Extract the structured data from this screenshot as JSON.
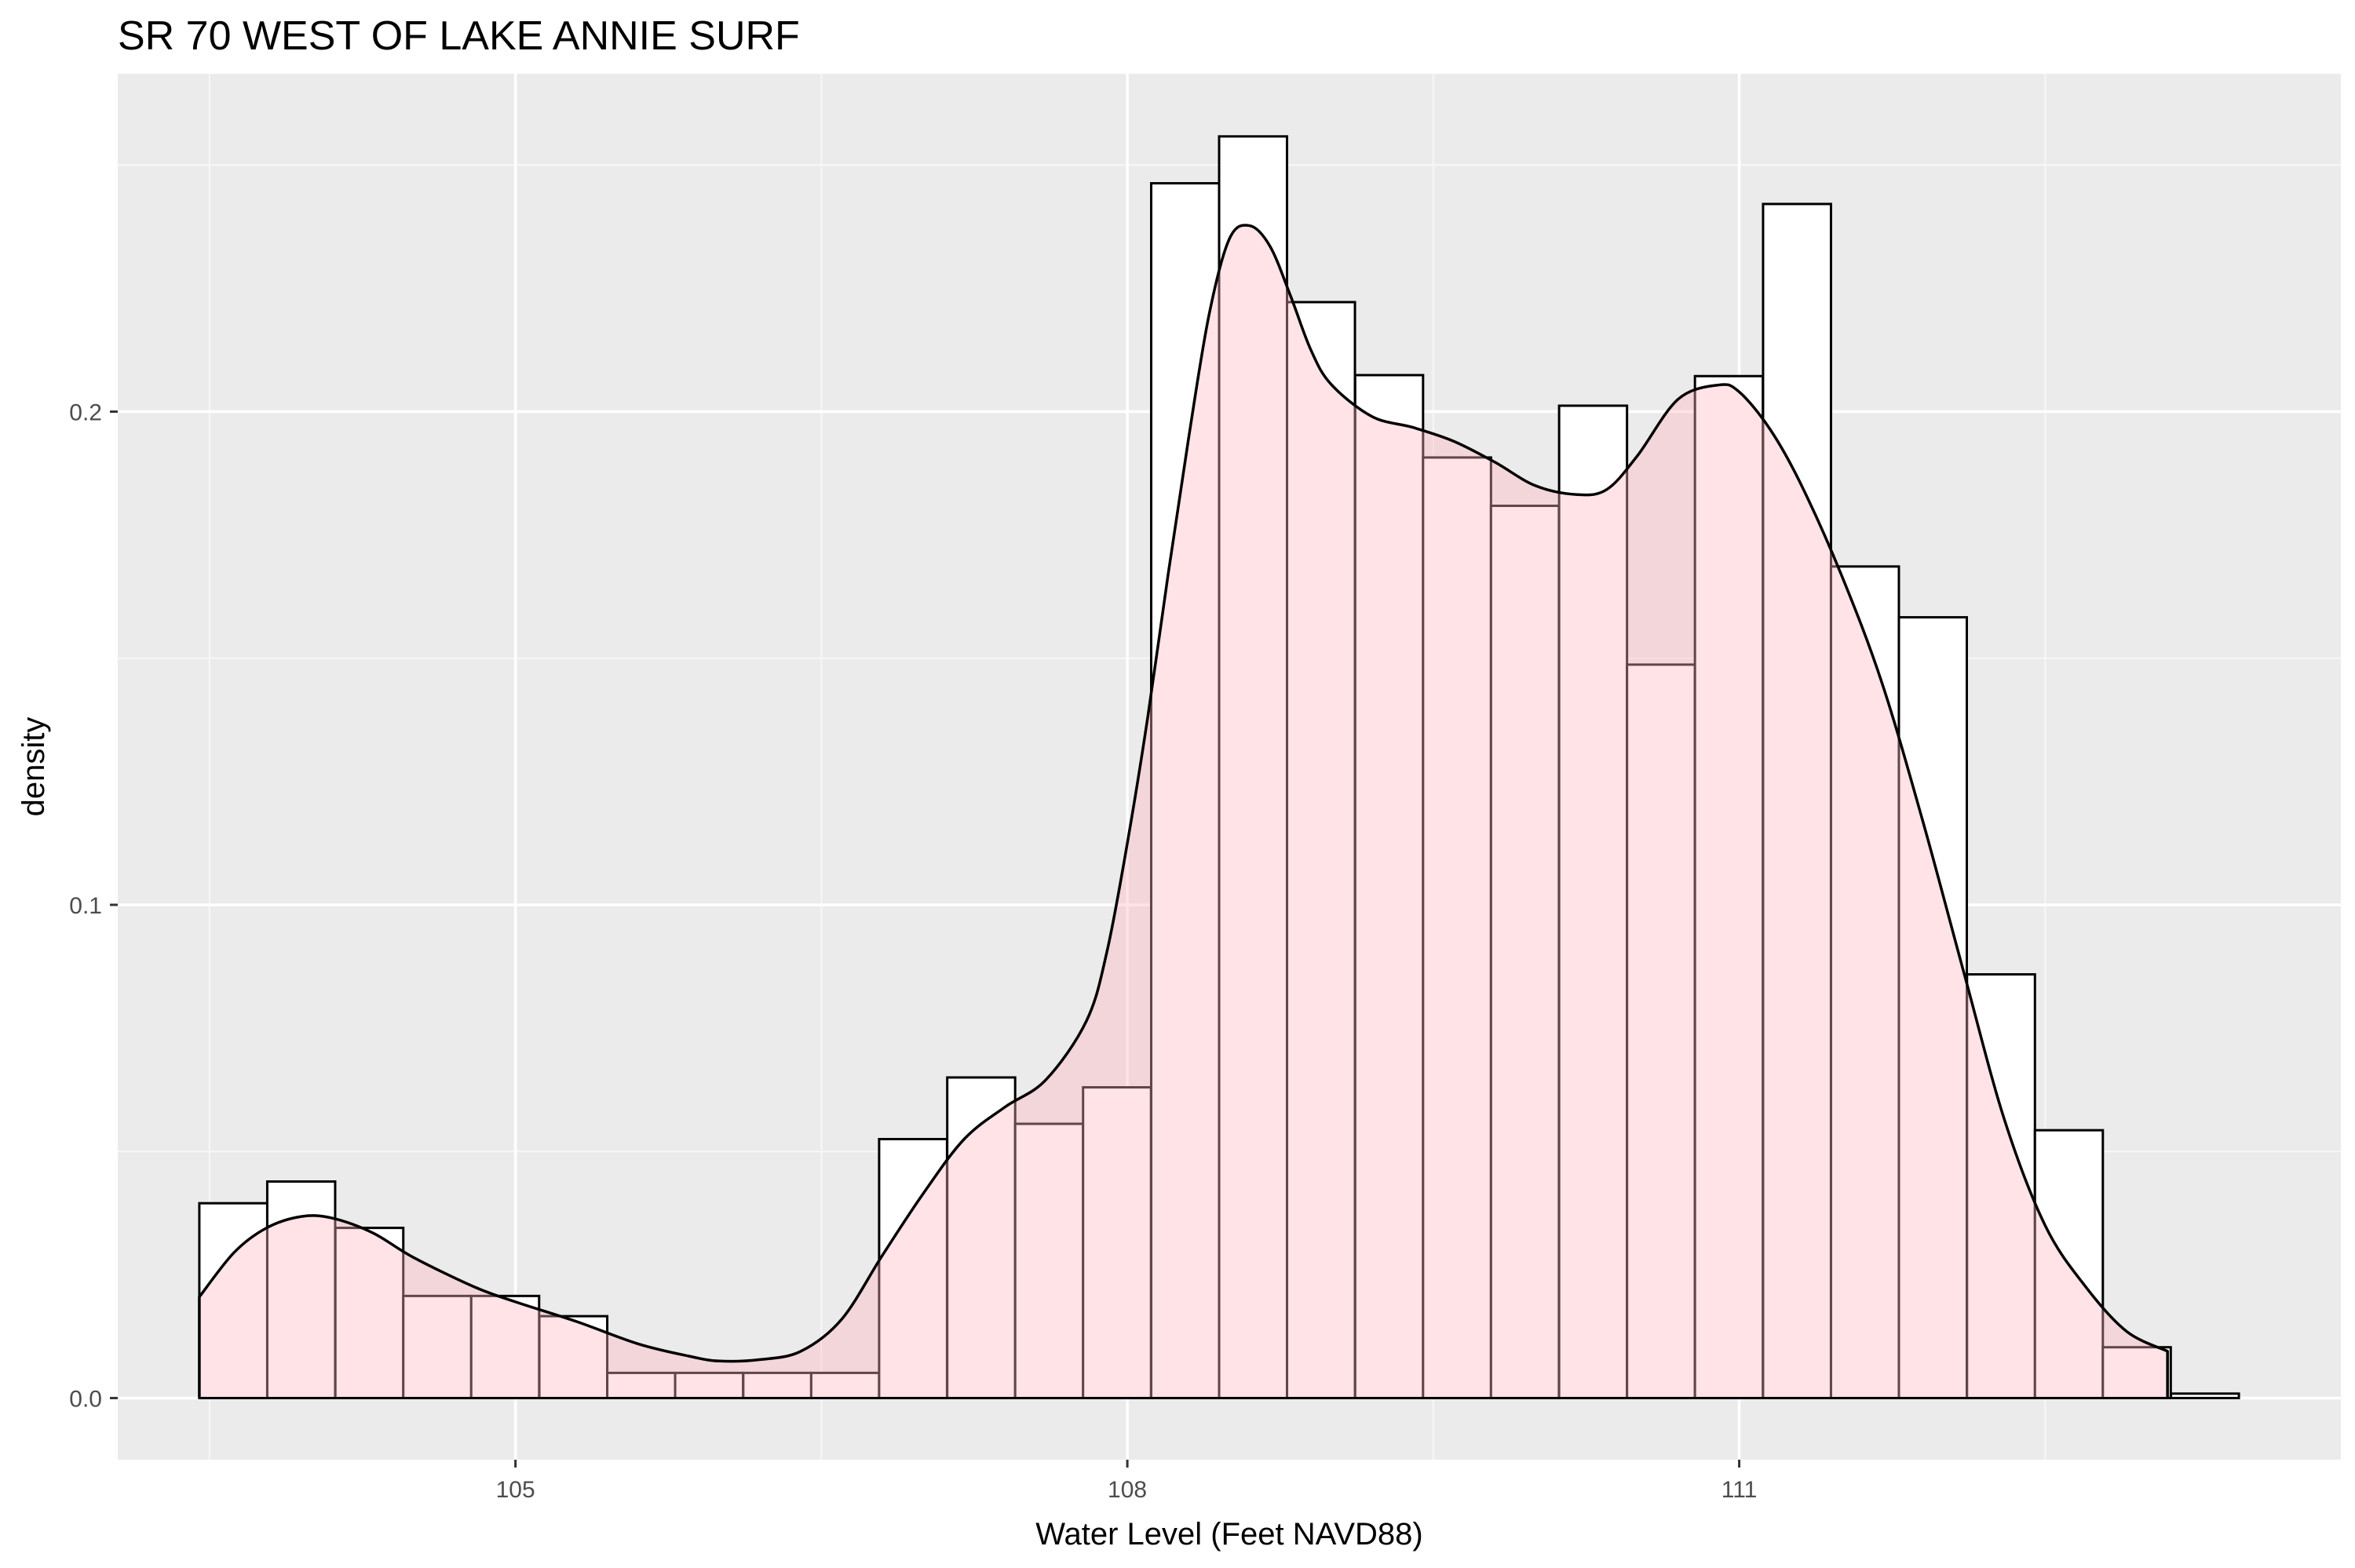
{
  "chart_data": {
    "type": "bar",
    "title": "SR 70 WEST OF LAKE ANNIE SURF",
    "xlabel": "Water Level (Feet NAVD88)",
    "ylabel": "density",
    "xlim": [
      103.05,
      113.95
    ],
    "ylim": [
      -0.0125,
      0.2685
    ],
    "x_ticks": [
      105,
      108,
      111
    ],
    "x_tick_labels": [
      "105",
      "108",
      "111"
    ],
    "x_minor_ticks": [
      103.5,
      106.5,
      109.5,
      112.5
    ],
    "y_ticks": [
      0.0,
      0.1,
      0.2
    ],
    "y_tick_labels": [
      "0.0",
      "0.1",
      "0.2"
    ],
    "y_minor_ticks": [
      0.05,
      0.15,
      0.25
    ],
    "grid": true,
    "bin_width": 0.333,
    "bins": [
      {
        "x0": 103.45,
        "density": 0.0395
      },
      {
        "x0": 103.783,
        "density": 0.0439
      },
      {
        "x0": 104.117,
        "density": 0.0345
      },
      {
        "x0": 104.45,
        "density": 0.0207
      },
      {
        "x0": 104.783,
        "density": 0.0207
      },
      {
        "x0": 105.117,
        "density": 0.0166
      },
      {
        "x0": 105.45,
        "density": 0.0051
      },
      {
        "x0": 105.783,
        "density": 0.0051
      },
      {
        "x0": 106.117,
        "density": 0.0051
      },
      {
        "x0": 106.45,
        "density": 0.0051
      },
      {
        "x0": 106.783,
        "density": 0.0525
      },
      {
        "x0": 107.117,
        "density": 0.065
      },
      {
        "x0": 107.45,
        "density": 0.0556
      },
      {
        "x0": 107.783,
        "density": 0.063
      },
      {
        "x0": 108.117,
        "density": 0.2463
      },
      {
        "x0": 108.45,
        "density": 0.2558
      },
      {
        "x0": 108.783,
        "density": 0.2222
      },
      {
        "x0": 109.117,
        "density": 0.2074
      },
      {
        "x0": 109.45,
        "density": 0.1907
      },
      {
        "x0": 109.783,
        "density": 0.1809
      },
      {
        "x0": 110.117,
        "density": 0.2012
      },
      {
        "x0": 110.45,
        "density": 0.1487
      },
      {
        "x0": 110.783,
        "density": 0.2072
      },
      {
        "x0": 111.117,
        "density": 0.2421
      },
      {
        "x0": 111.45,
        "density": 0.1686
      },
      {
        "x0": 111.783,
        "density": 0.1583
      },
      {
        "x0": 112.117,
        "density": 0.0859
      },
      {
        "x0": 112.45,
        "density": 0.0543
      },
      {
        "x0": 112.783,
        "density": 0.0103
      },
      {
        "x0": 113.117,
        "density": 0.0009
      }
    ],
    "density_curve": {
      "x": [
        103.45,
        103.62,
        103.78,
        103.95,
        104.1,
        104.3,
        104.5,
        104.8,
        105.0,
        105.3,
        105.6,
        105.85,
        106.0,
        106.2,
        106.4,
        106.6,
        106.8,
        107.0,
        107.2,
        107.4,
        107.6,
        107.8,
        107.9,
        108.0,
        108.1,
        108.2,
        108.3,
        108.4,
        108.5,
        108.6,
        108.7,
        108.8,
        108.9,
        109.0,
        109.2,
        109.4,
        109.6,
        109.8,
        110.0,
        110.2,
        110.35,
        110.5,
        110.7,
        110.9,
        111.0,
        111.15,
        111.3,
        111.5,
        111.7,
        111.9,
        112.1,
        112.3,
        112.5,
        112.7,
        112.9,
        113.1
      ],
      "y": [
        0.0205,
        0.0295,
        0.0345,
        0.0368,
        0.0365,
        0.0335,
        0.0285,
        0.0225,
        0.0195,
        0.0155,
        0.011,
        0.0085,
        0.0075,
        0.0078,
        0.0095,
        0.016,
        0.029,
        0.0415,
        0.0525,
        0.059,
        0.0645,
        0.0765,
        0.0905,
        0.1125,
        0.138,
        0.167,
        0.1945,
        0.2195,
        0.235,
        0.2377,
        0.2335,
        0.2235,
        0.2125,
        0.2055,
        0.199,
        0.1968,
        0.194,
        0.1898,
        0.185,
        0.1832,
        0.1842,
        0.191,
        0.2025,
        0.2054,
        0.204,
        0.1965,
        0.1855,
        0.167,
        0.145,
        0.117,
        0.0865,
        0.0565,
        0.035,
        0.0225,
        0.0135,
        0.0095
      ]
    }
  },
  "colors": {
    "panel_background": "#ebebeb",
    "grid_major": "#ffffff",
    "grid_minor": "#f7f7f7",
    "histogram_fill": "#ffffff",
    "histogram_stroke": "#000000",
    "density_fill": "#ffb6c1",
    "density_fill_opacity": 0.38,
    "density_stroke": "#000000",
    "axis_text": "#4d4d4d",
    "tick_mark": "#333333"
  }
}
